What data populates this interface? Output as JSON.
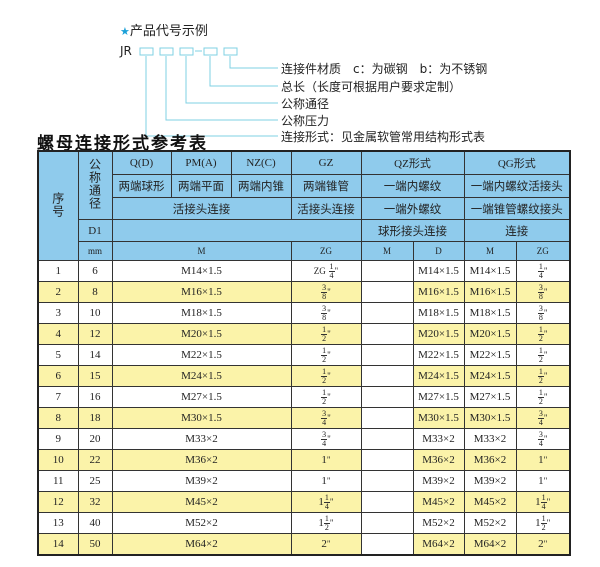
{
  "code_example": {
    "title": "产品代号示例",
    "prefix": "JR",
    "legend": [
      "连接件材质　c：为碳钢　b：为不锈钢",
      "总长（长度可根据用户要求定制）",
      "公称通径",
      "公称压力",
      "连接形式：见金属软管常用结构形式表"
    ],
    "line_color": "#7fd0e3"
  },
  "table_title": "螺母连接形式参考表",
  "header": {
    "seq": "序号",
    "dn": "公称通径",
    "d1": "D1",
    "mm": "mm",
    "q": "Q(D)",
    "pm": "PM(A)",
    "nz": "NZ(C)",
    "gz": "GZ",
    "qz": "QZ形式",
    "qg": "QG形式",
    "q_desc": "两端球形",
    "pm_desc": "两端平面",
    "nz_desc": "两端内锥",
    "gz_desc": "两端锥管",
    "qz_desc": "一端内螺纹",
    "qg_desc": "一端内螺纹活接头",
    "live_conn": "活接头连接",
    "gz_conn": "活接头连接",
    "qz_conn2": "一端外螺纹",
    "qg_conn2": "一端锥管螺纹接头",
    "qz_conn3": "球形接头连接",
    "qg_conn3": "连接",
    "m": "M",
    "zg": "ZG",
    "qz_m": "M",
    "qz_d": "D",
    "qg_m": "M",
    "qg_zg": "ZG"
  },
  "colors": {
    "header_bg": "#8fcbec",
    "even_row_bg": "#fbf3a9"
  },
  "rows": [
    {
      "no": "1",
      "dn": "6",
      "m": "M14×1.5",
      "zg": {
        "prefix": "ZG",
        "whole": "",
        "num": "1",
        "den": "4",
        "unit": "\""
      },
      "qz_d": "M14×1.5",
      "qg_m": "M14×1.5",
      "qg_zg": {
        "whole": "",
        "num": "1",
        "den": "4",
        "unit": "\""
      }
    },
    {
      "no": "2",
      "dn": "8",
      "m": "M16×1.5",
      "zg": {
        "whole": "",
        "num": "3",
        "den": "8",
        "unit": "\""
      },
      "qz_d": "M16×1.5",
      "qg_m": "M16×1.5",
      "qg_zg": {
        "whole": "",
        "num": "3",
        "den": "8",
        "unit": "\""
      }
    },
    {
      "no": "3",
      "dn": "10",
      "m": "M18×1.5",
      "zg": {
        "whole": "",
        "num": "3",
        "den": "8",
        "unit": "\""
      },
      "qz_d": "M18×1.5",
      "qg_m": "M18×1.5",
      "qg_zg": {
        "whole": "",
        "num": "3",
        "den": "8",
        "unit": "\""
      }
    },
    {
      "no": "4",
      "dn": "12",
      "m": "M20×1.5",
      "zg": {
        "whole": "",
        "num": "1",
        "den": "2",
        "unit": "\""
      },
      "qz_d": "M20×1.5",
      "qg_m": "M20×1.5",
      "qg_zg": {
        "whole": "",
        "num": "1",
        "den": "2",
        "unit": "\""
      }
    },
    {
      "no": "5",
      "dn": "14",
      "m": "M22×1.5",
      "zg": {
        "whole": "",
        "num": "1",
        "den": "2",
        "unit": "\""
      },
      "qz_d": "M22×1.5",
      "qg_m": "M22×1.5",
      "qg_zg": {
        "whole": "",
        "num": "1",
        "den": "2",
        "unit": "\""
      }
    },
    {
      "no": "6",
      "dn": "15",
      "m": "M24×1.5",
      "zg": {
        "whole": "",
        "num": "1",
        "den": "2",
        "unit": "\""
      },
      "qz_d": "M24×1.5",
      "qg_m": "M24×1.5",
      "qg_zg": {
        "whole": "",
        "num": "1",
        "den": "2",
        "unit": "\""
      }
    },
    {
      "no": "7",
      "dn": "16",
      "m": "M27×1.5",
      "zg": {
        "whole": "",
        "num": "1",
        "den": "2",
        "unit": "\""
      },
      "qz_d": "M27×1.5",
      "qg_m": "M27×1.5",
      "qg_zg": {
        "whole": "",
        "num": "1",
        "den": "2",
        "unit": "\""
      }
    },
    {
      "no": "8",
      "dn": "18",
      "m": "M30×1.5",
      "zg": {
        "whole": "",
        "num": "3",
        "den": "4",
        "unit": "\""
      },
      "qz_d": "M30×1.5",
      "qg_m": "M30×1.5",
      "qg_zg": {
        "whole": "",
        "num": "3",
        "den": "4",
        "unit": "\""
      }
    },
    {
      "no": "9",
      "dn": "20",
      "m": "M33×2",
      "zg": {
        "whole": "",
        "num": "3",
        "den": "4",
        "unit": "\""
      },
      "qz_d": "M33×2",
      "qg_m": "M33×2",
      "qg_zg": {
        "whole": "",
        "num": "3",
        "den": "4",
        "unit": "\""
      }
    },
    {
      "no": "10",
      "dn": "22",
      "m": "M36×2",
      "zg": {
        "whole": "1",
        "unit": "\""
      },
      "qz_d": "M36×2",
      "qg_m": "M36×2",
      "qg_zg": {
        "whole": "1",
        "unit": "\""
      }
    },
    {
      "no": "11",
      "dn": "25",
      "m": "M39×2",
      "zg": {
        "whole": "1",
        "unit": "\""
      },
      "qz_d": "M39×2",
      "qg_m": "M39×2",
      "qg_zg": {
        "whole": "1",
        "unit": "\""
      }
    },
    {
      "no": "12",
      "dn": "32",
      "m": "M45×2",
      "zg": {
        "whole": "1",
        "num": "1",
        "den": "4",
        "unit": "\""
      },
      "qz_d": "M45×2",
      "qg_m": "M45×2",
      "qg_zg": {
        "whole": "1",
        "num": "1",
        "den": "4",
        "unit": "\""
      }
    },
    {
      "no": "13",
      "dn": "40",
      "m": "M52×2",
      "zg": {
        "whole": "1",
        "num": "1",
        "den": "2",
        "unit": "\""
      },
      "qz_d": "M52×2",
      "qg_m": "M52×2",
      "qg_zg": {
        "whole": "1",
        "num": "1",
        "den": "2",
        "unit": "\""
      }
    },
    {
      "no": "14",
      "dn": "50",
      "m": "M64×2",
      "zg": {
        "whole": "2",
        "unit": "\""
      },
      "qz_d": "M64×2",
      "qg_m": "M64×2",
      "qg_zg": {
        "whole": "2",
        "unit": "\""
      }
    }
  ]
}
